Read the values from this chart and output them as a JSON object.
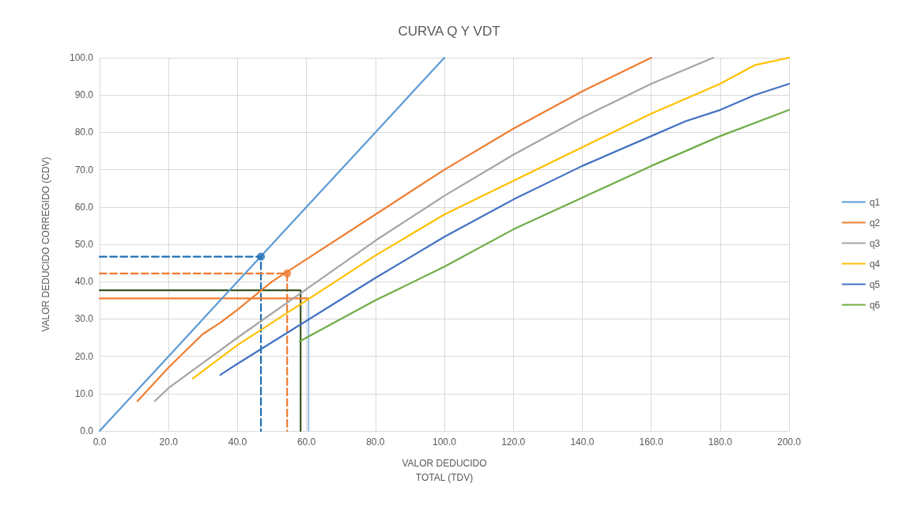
{
  "chart_data": {
    "type": "line",
    "title": "CURVA Q Y VDT",
    "xlabel": "VALOR DEDUCIDO\nTOTAL (TDV)",
    "ylabel": "VALOR DEDUCIDO CORREGIDO (CDV)",
    "xlim": [
      0,
      200
    ],
    "ylim": [
      0,
      100
    ],
    "xticks": [
      {
        "value": 0,
        "label": "0.0"
      },
      {
        "value": 20,
        "label": "20.0"
      },
      {
        "value": 40,
        "label": "40.0"
      },
      {
        "value": 60,
        "label": "60.0"
      },
      {
        "value": 80,
        "label": "80.0"
      },
      {
        "value": 100,
        "label": "100.0"
      },
      {
        "value": 120,
        "label": "120.0"
      },
      {
        "value": 140,
        "label": "140.0"
      },
      {
        "value": 160,
        "label": "160.0"
      },
      {
        "value": 180,
        "label": "180.0"
      },
      {
        "value": 200,
        "label": "200.0"
      }
    ],
    "yticks": [
      {
        "value": 0,
        "label": "0.0"
      },
      {
        "value": 10,
        "label": "10.0"
      },
      {
        "value": 20,
        "label": "20.0"
      },
      {
        "value": 30,
        "label": "30.0"
      },
      {
        "value": 40,
        "label": "40.0"
      },
      {
        "value": 50,
        "label": "50.0"
      },
      {
        "value": 60,
        "label": "60.0"
      },
      {
        "value": 70,
        "label": "70.0"
      },
      {
        "value": 80,
        "label": "80.0"
      },
      {
        "value": 90,
        "label": "90.0"
      },
      {
        "value": 100,
        "label": "100.0"
      }
    ],
    "grid": true,
    "legend": "right",
    "marker": "none",
    "line_style": "solid",
    "series": [
      {
        "name": "q1",
        "color": "#5b9bd5",
        "x": [
          0,
          100
        ],
        "values": [
          0,
          100
        ]
      },
      {
        "name": "q2",
        "color": "#ed7d31",
        "x": [
          11,
          20,
          30,
          35,
          40,
          50,
          60,
          80,
          100,
          120,
          140,
          160
        ],
        "values": [
          8,
          17,
          26,
          29,
          32.5,
          40,
          46,
          58,
          70,
          81,
          91,
          100
        ]
      },
      {
        "name": "q3",
        "color": "#a5a5a5",
        "x": [
          16,
          20,
          40,
          60,
          80,
          100,
          120,
          140,
          160,
          178
        ],
        "values": [
          8,
          11.5,
          25,
          38,
          51,
          63,
          74,
          84,
          93,
          100
        ]
      },
      {
        "name": "q4",
        "color": "#ffc000",
        "x": [
          27,
          40,
          60,
          80,
          100,
          120,
          140,
          160,
          180,
          190,
          200
        ],
        "values": [
          14,
          23,
          35,
          47,
          58,
          67,
          76,
          85,
          93,
          98,
          100
        ]
      },
      {
        "name": "q5",
        "color": "#4472c4",
        "x": [
          35,
          40,
          60,
          80,
          100,
          120,
          140,
          160,
          170,
          180,
          190,
          200
        ],
        "values": [
          15,
          18,
          29.5,
          41,
          52,
          62,
          71,
          79,
          83,
          86,
          90,
          93
        ]
      },
      {
        "name": "q6",
        "color": "#70ad47",
        "x": [
          58,
          60,
          80,
          100,
          120,
          140,
          160,
          180,
          200
        ],
        "values": [
          24,
          25,
          35,
          44,
          54,
          62.5,
          71,
          79,
          86
        ]
      },
      {
        "color": "#1f6fb4",
        "line_style": "dashed",
        "x": [
          0,
          46.8,
          46.8
        ],
        "values": [
          46.7,
          46.7,
          0
        ]
      },
      {
        "color": "#ed7d31",
        "line_style": "dashed",
        "x": [
          0,
          54.4,
          54.4
        ],
        "values": [
          42.2,
          42.2,
          0
        ]
      },
      {
        "color": "#375623",
        "x": [
          0,
          58.3,
          58.3
        ],
        "values": [
          37.7,
          37.7,
          0
        ]
      },
      {
        "color": "#ed7d31",
        "x": [
          0,
          60.6
        ],
        "values": [
          35.5,
          35.5
        ]
      },
      {
        "color": "#9dc3e6",
        "x": [
          60.6,
          60.6
        ],
        "values": [
          35.5,
          0
        ]
      },
      {
        "type": "scatter",
        "color": "#1f6fb4",
        "marker": "circle",
        "x": [
          46.8
        ],
        "values": [
          46.7
        ]
      },
      {
        "type": "scatter",
        "color": "#ed7d31",
        "marker": "circle",
        "x": [
          54.4
        ],
        "values": [
          42.2
        ]
      }
    ]
  }
}
